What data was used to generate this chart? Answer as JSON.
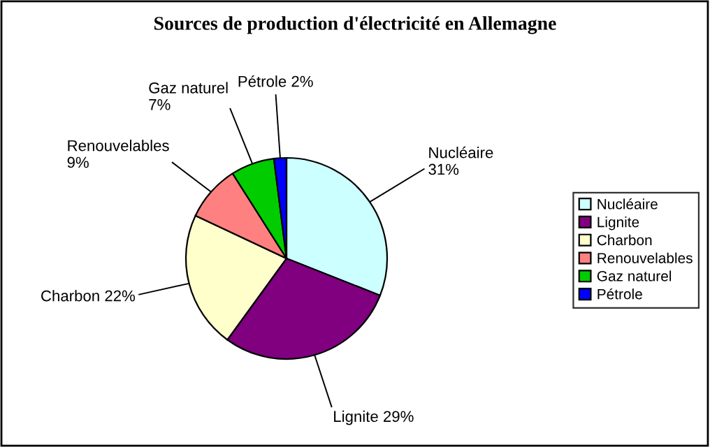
{
  "chart_data": {
    "type": "pie",
    "title": "Sources de production d'électricité en Allemagne",
    "categories": [
      "Nucléaire",
      "Lignite",
      "Charbon",
      "Renouvelables",
      "Gaz naturel",
      "Pétrole"
    ],
    "values": [
      31,
      29,
      22,
      9,
      7,
      2
    ],
    "value_labels": [
      "31%",
      "29%",
      "22%",
      "9%",
      "7%",
      "2%"
    ],
    "colors": [
      "#ccffff",
      "#800080",
      "#ffffcc",
      "#ff8080",
      "#00cc00",
      "#0000ff"
    ],
    "legend": "right"
  }
}
